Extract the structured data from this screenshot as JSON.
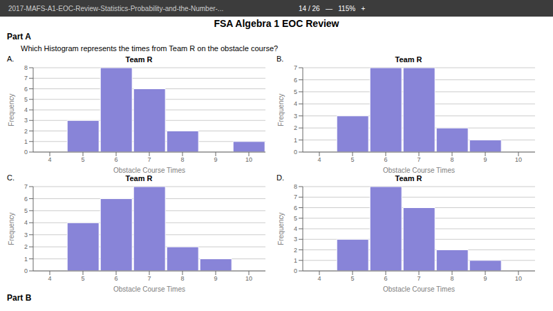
{
  "title": "FSA Algebra 1 EOC Review",
  "annotations": [
    "2017-MAFS-A1-EOC-Review-Statistics-Probability-and-the-Number-...",
    "14 / 26   —   115%   +",
    "Part A",
    "Which Histogram represents the times from Team R on the obstacle course?",
    "Part B"
  ],
  "chart_data": [
    {
      "type": "bar",
      "title": "Team R",
      "annotations": [
        "A."
      ],
      "categories": [
        4,
        5,
        6,
        7,
        8,
        9,
        10
      ],
      "values": [
        0,
        3,
        8,
        6,
        2,
        0,
        1
      ],
      "xlabel": "Obstacle Course Times",
      "ylabel": "Frequency",
      "ylim": [
        0,
        8
      ],
      "yticks": [
        0,
        1,
        2,
        3,
        4,
        5,
        6,
        7,
        8
      ],
      "grid": true
    },
    {
      "type": "bar",
      "title": "Team R",
      "annotations": [
        "B."
      ],
      "categories": [
        4,
        5,
        6,
        7,
        8,
        9,
        10
      ],
      "values": [
        0,
        3,
        7,
        7,
        2,
        1,
        0
      ],
      "xlabel": "Obstacle Course Times",
      "ylabel": "Frequency",
      "ylim": [
        0,
        7
      ],
      "yticks": [
        0,
        1,
        2,
        3,
        4,
        5,
        6,
        7
      ],
      "grid": true
    },
    {
      "type": "bar",
      "title": "Team R",
      "annotations": [
        "C."
      ],
      "categories": [
        4,
        5,
        6,
        7,
        8,
        9,
        10
      ],
      "values": [
        0,
        4,
        6,
        7,
        2,
        1,
        0
      ],
      "xlabel": "Obstacle Course Times",
      "ylabel": "Frequency",
      "ylim": [
        0,
        7
      ],
      "yticks": [
        0,
        1,
        2,
        3,
        4,
        5,
        6,
        7
      ],
      "grid": true
    },
    {
      "type": "bar",
      "title": "Team R",
      "annotations": [
        "D."
      ],
      "categories": [
        4,
        5,
        6,
        7,
        8,
        9,
        10
      ],
      "values": [
        0,
        3,
        8,
        6,
        2,
        1,
        0
      ],
      "xlabel": "Obstacle Course Times",
      "ylabel": "Frequency",
      "ylim": [
        0,
        8
      ],
      "yticks": [
        0,
        1,
        2,
        3,
        4,
        5,
        6,
        7,
        8
      ],
      "grid": true
    }
  ]
}
